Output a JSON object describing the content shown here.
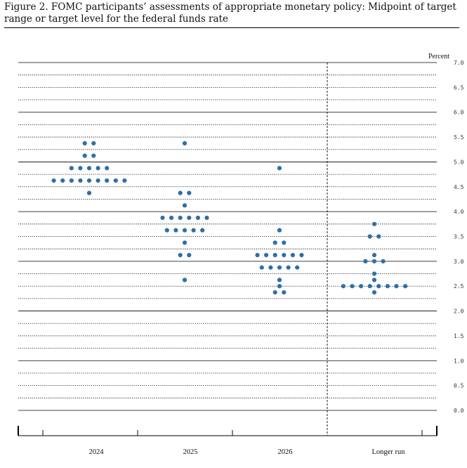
{
  "chart_data": {
    "type": "scatter",
    "title": "Figure 2.  FOMC participants’ assessments of appropriate monetary policy:  Midpoint of target range or target level for the federal funds rate",
    "unit_label": "Percent",
    "ylim": [
      0,
      7.0
    ],
    "y_ticks": [
      "0.0",
      "0.5",
      "1.0",
      "1.5",
      "2.0",
      "2.5",
      "3.0",
      "3.5",
      "4.0",
      "4.5",
      "5.0",
      "5.5",
      "6.0",
      "6.5",
      "7.0"
    ],
    "categories": [
      "2024",
      "2025",
      "2026",
      "Longer run"
    ],
    "grid": "dotted at 0.25 intervals, solid at whole numbers",
    "separator_before": "Longer run",
    "dot_color": "#2e6fa7",
    "dots": [
      {
        "category": "2024",
        "rates": [
          {
            "y": 5.375,
            "count": 2
          },
          {
            "y": 5.125,
            "count": 2
          },
          {
            "y": 4.875,
            "count": 5
          },
          {
            "y": 4.625,
            "count": 9
          },
          {
            "y": 4.375,
            "count": 1
          }
        ]
      },
      {
        "category": "2025",
        "rates": [
          {
            "y": 5.375,
            "count": 1
          },
          {
            "y": 4.375,
            "count": 2
          },
          {
            "y": 4.125,
            "count": 1
          },
          {
            "y": 3.875,
            "count": 6
          },
          {
            "y": 3.625,
            "count": 5
          },
          {
            "y": 3.375,
            "count": 1
          },
          {
            "y": 3.125,
            "count": 2
          },
          {
            "y": 2.625,
            "count": 1
          }
        ]
      },
      {
        "category": "2026",
        "rates": [
          {
            "y": 4.875,
            "count": 1
          },
          {
            "y": 3.625,
            "count": 1
          },
          {
            "y": 3.375,
            "count": 2
          },
          {
            "y": 3.125,
            "count": 6
          },
          {
            "y": 2.875,
            "count": 5
          },
          {
            "y": 2.625,
            "count": 1
          },
          {
            "y": 2.5,
            "count": 1
          },
          {
            "y": 2.375,
            "count": 2
          }
        ]
      },
      {
        "category": "Longer run",
        "rates": [
          {
            "y": 3.75,
            "count": 1
          },
          {
            "y": 3.5,
            "count": 2
          },
          {
            "y": 3.125,
            "count": 1
          },
          {
            "y": 3.0,
            "count": 3
          },
          {
            "y": 2.75,
            "count": 1
          },
          {
            "y": 2.625,
            "count": 1
          },
          {
            "y": 2.5,
            "count": 8
          },
          {
            "y": 2.375,
            "count": 1
          }
        ]
      }
    ]
  }
}
